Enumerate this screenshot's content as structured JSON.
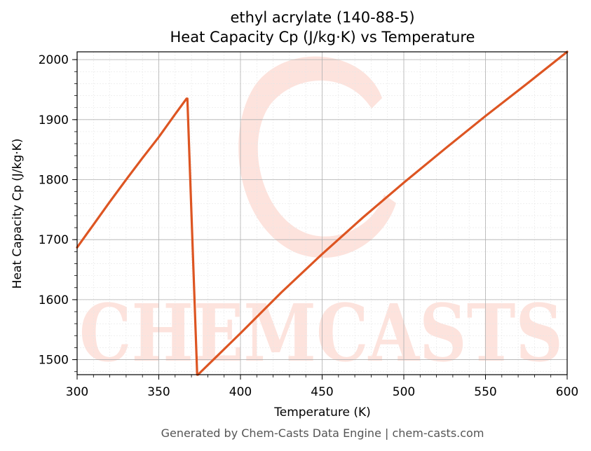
{
  "chart_data": {
    "type": "line",
    "title_line1": "ethyl acrylate (140-88-5)",
    "title_line2": "Heat Capacity Cp (J/kg·K) vs Temperature",
    "xlabel": "Temperature (K)",
    "ylabel": "Heat Capacity Cp (J/kg·K)",
    "xlim": [
      300,
      600
    ],
    "ylim": [
      1475,
      2013
    ],
    "xticks": [
      300,
      350,
      400,
      450,
      500,
      550,
      600
    ],
    "yticks": [
      1500,
      1600,
      1700,
      1800,
      1900,
      2000
    ],
    "grid": true,
    "line_color": "#dd5522",
    "series": [
      {
        "x": [
          300,
          310,
          320,
          330,
          340,
          350,
          360,
          367,
          367.5,
          373.5,
          374,
          400,
          425,
          450,
          475,
          500,
          525,
          550,
          575,
          600
        ],
        "y": [
          1687,
          1725,
          1763,
          1800,
          1836,
          1871,
          1909,
          1935,
          1935,
          1475,
          1475,
          1544,
          1612,
          1676,
          1737,
          1795,
          1851,
          1906,
          1959,
          2013
        ]
      }
    ]
  },
  "watermark": {
    "text": "CHEMCASTS"
  },
  "footer": "Generated by Chem-Casts Data Engine | chem-casts.com"
}
